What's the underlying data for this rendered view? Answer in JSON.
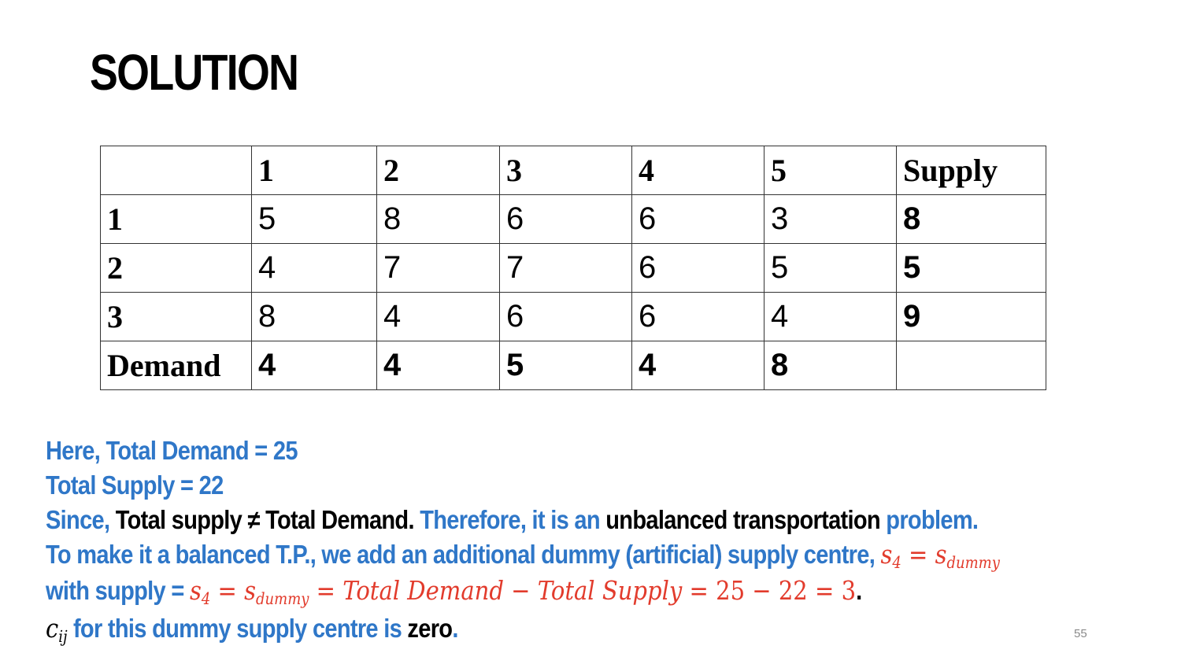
{
  "title": "SOLUTION",
  "table": {
    "corner": "",
    "header": [
      "1",
      "2",
      "3",
      "4",
      "5",
      "Supply"
    ],
    "rows": [
      {
        "label": "1",
        "costs": [
          "5",
          "8",
          "6",
          "6",
          "3"
        ],
        "supply": "8"
      },
      {
        "label": "2",
        "costs": [
          "4",
          "7",
          "7",
          "6",
          "5"
        ],
        "supply": "5"
      },
      {
        "label": "3",
        "costs": [
          "8",
          "4",
          "6",
          "6",
          "4"
        ],
        "supply": "9"
      }
    ],
    "demand": {
      "label": "Demand",
      "values": [
        "4",
        "4",
        "5",
        "4",
        "8"
      ],
      "supply": ""
    }
  },
  "text": {
    "line1": "Here, Total Demand = 25",
    "line2": "Total Supply = 22",
    "line3": {
      "a": "Since, ",
      "b": "Total supply ≠ Total Demand. ",
      "c": "Therefore, it is an ",
      "d": "unbalanced transportation ",
      "e": "problem."
    },
    "line4": {
      "a": "To make it a balanced T.P., we add an additional dummy (artificial) supply centre, ",
      "s": "s",
      "s_sub": "4",
      "eq": " = ",
      "sd": "s",
      "sd_sub": "dummy"
    },
    "line5": {
      "a": "with supply = ",
      "s": "s",
      "s_sub": "4",
      "eq1": " = ",
      "sd": "s",
      "sd_sub": "dummy",
      "expr": " = Total Demand − Total Supply",
      "nums": " = 25 − 22 = 3",
      "end": "."
    },
    "line6": {
      "c": "c",
      "c_sub": "ij",
      "a": " for this dummy supply centre is ",
      "b": "zero",
      "end": "."
    }
  },
  "page_number": "55",
  "colors": {
    "accent_blue": "#2f77c8",
    "math_red": "#e23b2c",
    "text_black": "#000000"
  }
}
